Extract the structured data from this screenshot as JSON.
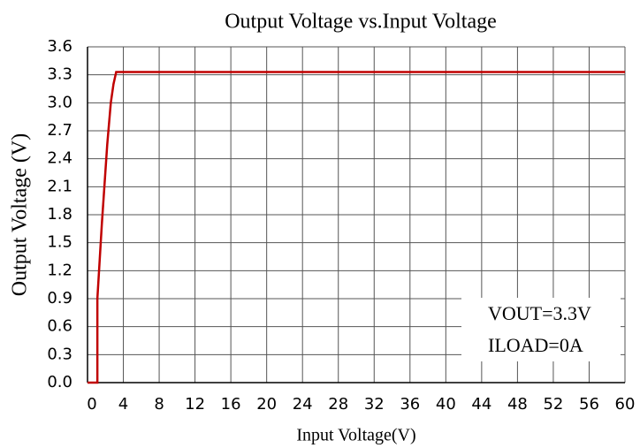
{
  "chart_data": {
    "type": "line",
    "title": "Output Voltage vs.Input Voltage",
    "x_label": "Input Voltage(V)",
    "y_label": "Output Voltage (V)",
    "annotations": [
      "VOUT=3.3V",
      "ILOAD=0A"
    ],
    "x": [
      0,
      1.1,
      1.1,
      1.6,
      2.2,
      2.6,
      2.9,
      3.2,
      60
    ],
    "values": [
      0,
      0,
      0.9,
      1.7,
      2.55,
      3.0,
      3.2,
      3.33,
      3.33
    ],
    "color": "#c00000",
    "xlim": [
      0,
      60
    ],
    "xticks": [
      0,
      4,
      8,
      12,
      16,
      20,
      24,
      28,
      32,
      36,
      40,
      44,
      48,
      52,
      56,
      60
    ],
    "ylim": [
      0,
      3.6
    ],
    "yticks": [
      {
        "value": 0,
        "label": "0.0"
      },
      0.3,
      0.6,
      0.9,
      1.2,
      1.5,
      1.8,
      2.1,
      2.4,
      2.7,
      {
        "value": 3,
        "label": "3.0"
      },
      3.3,
      3.6
    ],
    "grid": true
  }
}
